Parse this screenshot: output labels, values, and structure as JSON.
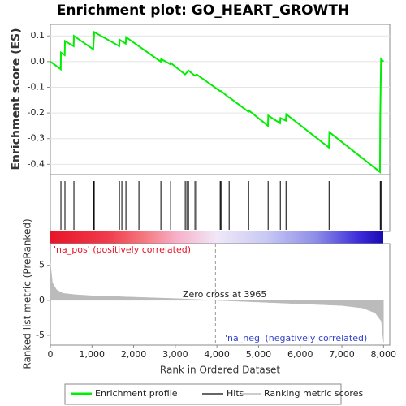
{
  "chart_data": [
    {
      "type": "line",
      "title": "Enrichment plot: GO_HEART_GROWTH",
      "ylabel": "Enrichment score (ES)",
      "name": "Enrichment profile",
      "color": "#00ee00",
      "x": [
        0,
        250,
        254,
        345,
        351,
        560,
        566,
        1030,
        1054,
        1655,
        1665,
        1810,
        1820,
        2650,
        2660,
        2880,
        2890,
        3235,
        3320,
        3470,
        3515,
        4075,
        4100,
        4290,
        4300,
        4755,
        4765,
        5225,
        5232,
        5515,
        5525,
        5655,
        5665,
        6690,
        6700,
        7915,
        7922,
        7941,
        8000
      ],
      "values": [
        0.0,
        -0.03,
        0.035,
        0.025,
        0.08,
        0.06,
        0.1,
        0.048,
        0.115,
        0.06,
        0.085,
        0.07,
        0.095,
        0.0,
        0.01,
        -0.01,
        -0.005,
        -0.05,
        -0.035,
        -0.055,
        -0.05,
        -0.115,
        -0.115,
        -0.14,
        -0.14,
        -0.195,
        -0.19,
        -0.25,
        -0.21,
        -0.24,
        -0.22,
        -0.23,
        -0.205,
        -0.335,
        -0.275,
        -0.43,
        -0.22,
        0.01,
        0.0
      ],
      "xlim": [
        0,
        8150
      ],
      "ylim": [
        -0.44,
        0.145
      ],
      "yticks": [
        0.1,
        {
          "value": 0,
          "label": "0.0"
        },
        -0.1,
        -0.2,
        -0.3,
        -0.4
      ],
      "grid": true
    },
    {
      "type": "hits",
      "name": "Hits",
      "color": "#000000",
      "x": [
        254,
        351,
        566,
        1034,
        1054,
        1659,
        1717,
        1815,
        2127,
        2654,
        2888,
        3239,
        3278,
        3317,
        3473,
        3512,
        4078,
        4098,
        4293,
        4761,
        5229,
        5522,
        5659,
        6693,
        7922,
        7941
      ],
      "xlim": [
        0,
        8150
      ]
    },
    {
      "type": "area",
      "name": "Ranking metric scores",
      "ylabel": "Ranked list metric (PreRanked)",
      "xlabel": "Rank in Ordered Dataset",
      "color": "#bbbbbb",
      "x": [
        0,
        50,
        150,
        300,
        600,
        1000,
        2000,
        3000,
        3965,
        5000,
        6000,
        7000,
        7500,
        7800,
        7950,
        8000
      ],
      "values": [
        5.3,
        2.5,
        1.5,
        1.0,
        0.8,
        0.65,
        0.45,
        0.25,
        0,
        -0.25,
        -0.5,
        -0.75,
        -1.1,
        -1.8,
        -3,
        -6
      ],
      "xlim": [
        0,
        8150
      ],
      "ylim": [
        -6.4,
        8.1
      ],
      "yticks": [
        -5,
        0,
        5
      ],
      "xticks": [
        0,
        {
          "value": 1000,
          "label": "1,000"
        },
        {
          "value": 2000,
          "label": "2,000"
        },
        {
          "value": 3000,
          "label": "3,000"
        },
        {
          "value": 4000,
          "label": "4,000"
        },
        {
          "value": 5000,
          "label": "5,000"
        },
        {
          "value": 6000,
          "label": "6,000"
        },
        {
          "value": 7000,
          "label": "7,000"
        },
        {
          "value": 8000,
          "label": "8,000"
        }
      ],
      "zero_cross": 3965,
      "annotations": [
        "'na_pos' (positively correlated)",
        "Zero cross at 3965",
        "'na_neg' (negatively correlated)"
      ]
    }
  ]
}
